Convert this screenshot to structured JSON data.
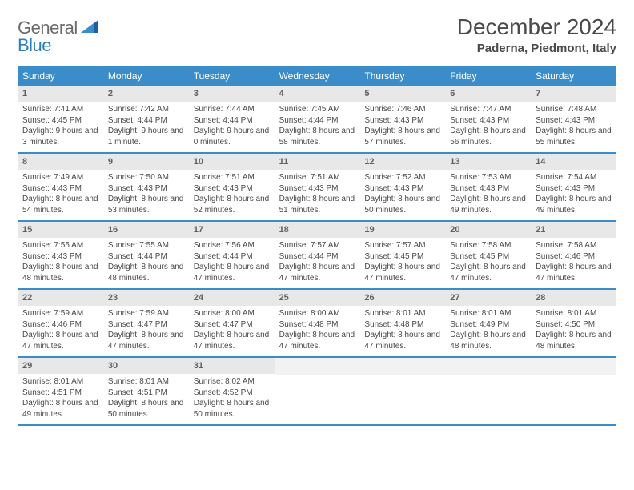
{
  "logo": {
    "general": "General",
    "blue": "Blue"
  },
  "title": "December 2024",
  "location": "Paderna, Piedmont, Italy",
  "weekdays": [
    "Sunday",
    "Monday",
    "Tuesday",
    "Wednesday",
    "Thursday",
    "Friday",
    "Saturday"
  ],
  "colors": {
    "header_bar": "#3a8dc8",
    "daynum_bg": "#e8e8e8",
    "row_border": "#3a8dc8",
    "logo_blue": "#2a7fbf",
    "logo_gray": "#6b6b6b"
  },
  "days": [
    {
      "n": 1,
      "sunrise": "7:41 AM",
      "sunset": "4:45 PM",
      "daylight": "9 hours and 3 minutes."
    },
    {
      "n": 2,
      "sunrise": "7:42 AM",
      "sunset": "4:44 PM",
      "daylight": "9 hours and 1 minute."
    },
    {
      "n": 3,
      "sunrise": "7:44 AM",
      "sunset": "4:44 PM",
      "daylight": "9 hours and 0 minutes."
    },
    {
      "n": 4,
      "sunrise": "7:45 AM",
      "sunset": "4:44 PM",
      "daylight": "8 hours and 58 minutes."
    },
    {
      "n": 5,
      "sunrise": "7:46 AM",
      "sunset": "4:43 PM",
      "daylight": "8 hours and 57 minutes."
    },
    {
      "n": 6,
      "sunrise": "7:47 AM",
      "sunset": "4:43 PM",
      "daylight": "8 hours and 56 minutes."
    },
    {
      "n": 7,
      "sunrise": "7:48 AM",
      "sunset": "4:43 PM",
      "daylight": "8 hours and 55 minutes."
    },
    {
      "n": 8,
      "sunrise": "7:49 AM",
      "sunset": "4:43 PM",
      "daylight": "8 hours and 54 minutes."
    },
    {
      "n": 9,
      "sunrise": "7:50 AM",
      "sunset": "4:43 PM",
      "daylight": "8 hours and 53 minutes."
    },
    {
      "n": 10,
      "sunrise": "7:51 AM",
      "sunset": "4:43 PM",
      "daylight": "8 hours and 52 minutes."
    },
    {
      "n": 11,
      "sunrise": "7:51 AM",
      "sunset": "4:43 PM",
      "daylight": "8 hours and 51 minutes."
    },
    {
      "n": 12,
      "sunrise": "7:52 AM",
      "sunset": "4:43 PM",
      "daylight": "8 hours and 50 minutes."
    },
    {
      "n": 13,
      "sunrise": "7:53 AM",
      "sunset": "4:43 PM",
      "daylight": "8 hours and 49 minutes."
    },
    {
      "n": 14,
      "sunrise": "7:54 AM",
      "sunset": "4:43 PM",
      "daylight": "8 hours and 49 minutes."
    },
    {
      "n": 15,
      "sunrise": "7:55 AM",
      "sunset": "4:43 PM",
      "daylight": "8 hours and 48 minutes."
    },
    {
      "n": 16,
      "sunrise": "7:55 AM",
      "sunset": "4:44 PM",
      "daylight": "8 hours and 48 minutes."
    },
    {
      "n": 17,
      "sunrise": "7:56 AM",
      "sunset": "4:44 PM",
      "daylight": "8 hours and 47 minutes."
    },
    {
      "n": 18,
      "sunrise": "7:57 AM",
      "sunset": "4:44 PM",
      "daylight": "8 hours and 47 minutes."
    },
    {
      "n": 19,
      "sunrise": "7:57 AM",
      "sunset": "4:45 PM",
      "daylight": "8 hours and 47 minutes."
    },
    {
      "n": 20,
      "sunrise": "7:58 AM",
      "sunset": "4:45 PM",
      "daylight": "8 hours and 47 minutes."
    },
    {
      "n": 21,
      "sunrise": "7:58 AM",
      "sunset": "4:46 PM",
      "daylight": "8 hours and 47 minutes."
    },
    {
      "n": 22,
      "sunrise": "7:59 AM",
      "sunset": "4:46 PM",
      "daylight": "8 hours and 47 minutes."
    },
    {
      "n": 23,
      "sunrise": "7:59 AM",
      "sunset": "4:47 PM",
      "daylight": "8 hours and 47 minutes."
    },
    {
      "n": 24,
      "sunrise": "8:00 AM",
      "sunset": "4:47 PM",
      "daylight": "8 hours and 47 minutes."
    },
    {
      "n": 25,
      "sunrise": "8:00 AM",
      "sunset": "4:48 PM",
      "daylight": "8 hours and 47 minutes."
    },
    {
      "n": 26,
      "sunrise": "8:01 AM",
      "sunset": "4:48 PM",
      "daylight": "8 hours and 47 minutes."
    },
    {
      "n": 27,
      "sunrise": "8:01 AM",
      "sunset": "4:49 PM",
      "daylight": "8 hours and 48 minutes."
    },
    {
      "n": 28,
      "sunrise": "8:01 AM",
      "sunset": "4:50 PM",
      "daylight": "8 hours and 48 minutes."
    },
    {
      "n": 29,
      "sunrise": "8:01 AM",
      "sunset": "4:51 PM",
      "daylight": "8 hours and 49 minutes."
    },
    {
      "n": 30,
      "sunrise": "8:01 AM",
      "sunset": "4:51 PM",
      "daylight": "8 hours and 50 minutes."
    },
    {
      "n": 31,
      "sunrise": "8:02 AM",
      "sunset": "4:52 PM",
      "daylight": "8 hours and 50 minutes."
    }
  ],
  "labels": {
    "sunrise_prefix": "Sunrise: ",
    "sunset_prefix": "Sunset: ",
    "daylight_prefix": "Daylight: "
  },
  "layout": {
    "start_weekday_index": 0,
    "num_weeks": 5,
    "trailing_empty": 4
  }
}
